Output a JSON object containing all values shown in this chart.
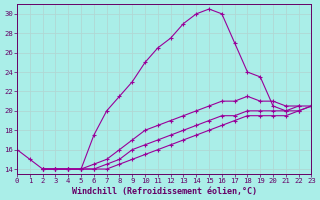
{
  "xlabel": "Windchill (Refroidissement éolien,°C)",
  "background_color": "#aaeee8",
  "grid_color": "#b0d8d4",
  "line_color": "#990099",
  "curves": [
    {
      "x": [
        0,
        1,
        2,
        3,
        4,
        5,
        6,
        7,
        8,
        9,
        10,
        11,
        12,
        13,
        14,
        15,
        16,
        17,
        18,
        19,
        20,
        21,
        22
      ],
      "y": [
        16,
        15,
        14,
        14,
        14,
        14,
        17.5,
        20,
        21.5,
        23,
        25,
        26.5,
        27.5,
        29,
        30,
        30.5,
        30,
        27,
        24,
        23.5,
        20.5,
        20,
        20.5
      ],
      "marker": "+"
    },
    {
      "x": [
        2,
        3,
        4,
        5,
        6,
        7,
        8,
        9,
        10,
        11,
        12,
        13,
        14,
        15,
        16,
        17,
        18,
        19,
        20,
        21,
        22,
        23
      ],
      "y": [
        14,
        14,
        14,
        14,
        14.5,
        15,
        16,
        17,
        18,
        18.5,
        19,
        19.5,
        20,
        20.5,
        21,
        21,
        21.5,
        21,
        21,
        20.5,
        20.5,
        20.5
      ],
      "marker": "+"
    },
    {
      "x": [
        2,
        3,
        4,
        5,
        6,
        7,
        8,
        9,
        10,
        11,
        12,
        13,
        14,
        15,
        16,
        17,
        18,
        19,
        20,
        21,
        22,
        23
      ],
      "y": [
        14,
        14,
        14,
        14,
        14,
        14.5,
        15,
        16,
        16.5,
        17,
        17.5,
        18,
        18.5,
        19,
        19.5,
        19.5,
        20,
        20,
        20,
        20,
        20,
        20.5
      ],
      "marker": "+"
    },
    {
      "x": [
        2,
        3,
        4,
        5,
        6,
        7,
        8,
        9,
        10,
        11,
        12,
        13,
        14,
        15,
        16,
        17,
        18,
        19,
        20,
        21,
        22,
        23
      ],
      "y": [
        14,
        14,
        14,
        14,
        14,
        14,
        14.5,
        15,
        15.5,
        16,
        16.5,
        17,
        17.5,
        18,
        18.5,
        19,
        19.5,
        19.5,
        19.5,
        19.5,
        20,
        20.5
      ],
      "marker": "+"
    }
  ],
  "xlim": [
    0,
    23
  ],
  "ylim": [
    13.5,
    31
  ],
  "yticks": [
    14,
    16,
    18,
    20,
    22,
    24,
    26,
    28,
    30
  ],
  "xticks": [
    0,
    1,
    2,
    3,
    4,
    5,
    6,
    7,
    8,
    9,
    10,
    11,
    12,
    13,
    14,
    15,
    16,
    17,
    18,
    19,
    20,
    21,
    22,
    23
  ],
  "tick_fontsize": 5.2,
  "xlabel_fontsize": 6.0
}
